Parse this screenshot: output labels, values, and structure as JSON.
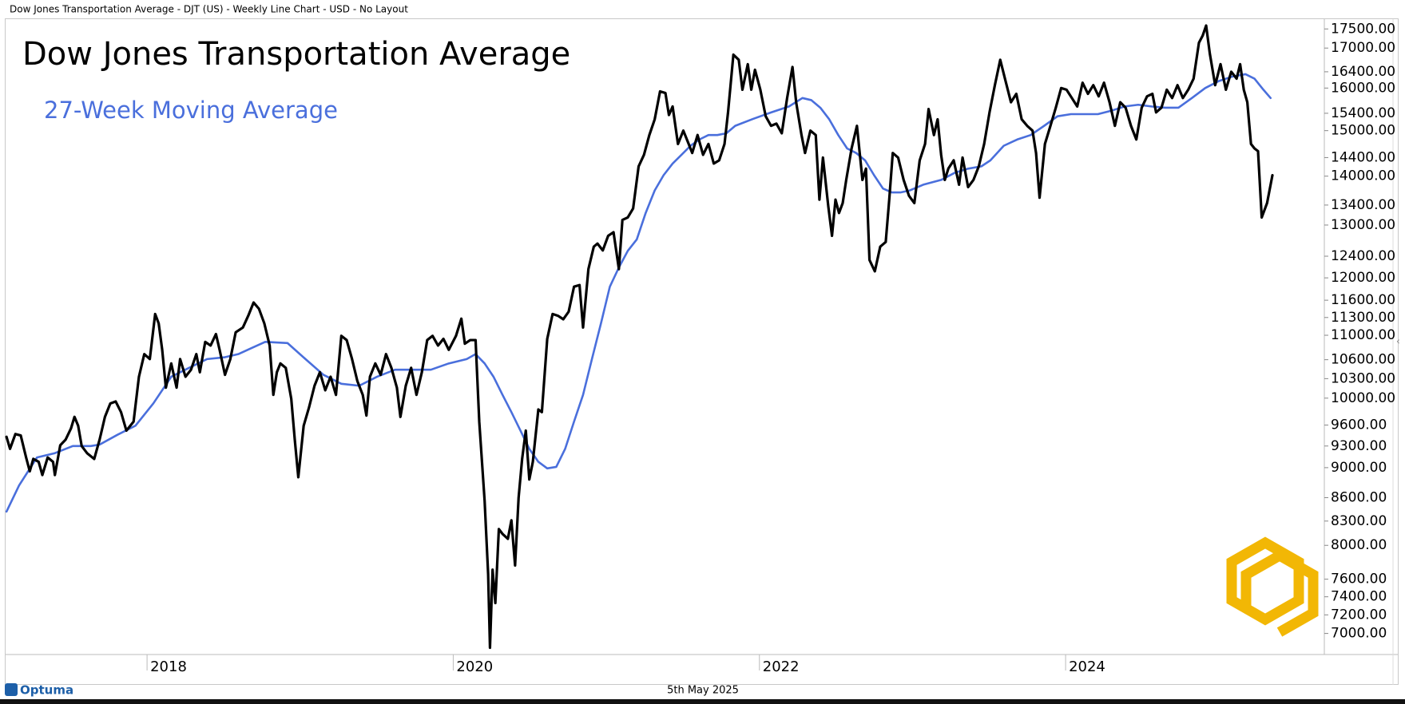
{
  "header": "Dow Jones Transportation Average - DJT (US) - Weekly Line Chart - USD - No Layout",
  "footer": {
    "brand": "Optuma",
    "date": "5th May 2025"
  },
  "chart_data": {
    "type": "line",
    "title": "Dow Jones Transportation Average",
    "log_y": true,
    "y_axis_side": "right",
    "grid": false,
    "xlim": [
      2017.076,
      2025.69
    ],
    "xticks": [
      2018,
      2020,
      2022,
      2024
    ],
    "ylim": [
      6780,
      17740
    ],
    "yticks": [
      {
        "value": 17500,
        "label": "17500.00"
      },
      {
        "value": 17000,
        "label": "17000.00"
      },
      {
        "value": 16400,
        "label": "16400.00"
      },
      {
        "value": 16000,
        "label": "16000.00"
      },
      {
        "value": 15400,
        "label": "15400.00"
      },
      {
        "value": 15000,
        "label": "15000.00"
      },
      {
        "value": 14400,
        "label": "14400.00"
      },
      {
        "value": 14000,
        "label": "14000.00"
      },
      {
        "value": 13400,
        "label": "13400.00"
      },
      {
        "value": 13000,
        "label": "13000.00"
      },
      {
        "value": 12400,
        "label": "12400.00"
      },
      {
        "value": 12000,
        "label": "12000.00"
      },
      {
        "value": 11600,
        "label": "11600.00"
      },
      {
        "value": 11300,
        "label": "11300.00"
      },
      {
        "value": 11000,
        "label": "11000.00"
      },
      {
        "value": 10600,
        "label": "10600.00"
      },
      {
        "value": 10300,
        "label": "10300.00"
      },
      {
        "value": 10000,
        "label": "10000.00"
      },
      {
        "value": 9600,
        "label": "9600.00"
      },
      {
        "value": 9300,
        "label": "9300.00"
      },
      {
        "value": 9000,
        "label": "9000.00"
      },
      {
        "value": 8600,
        "label": "8600.00"
      },
      {
        "value": 8300,
        "label": "8300.00"
      },
      {
        "value": 8000,
        "label": "8000.00"
      },
      {
        "value": 7600,
        "label": "7600.00"
      },
      {
        "value": 7400,
        "label": "7400.00"
      },
      {
        "value": 7200,
        "label": "7200.00"
      },
      {
        "value": 7000,
        "label": "7000.00"
      }
    ],
    "series": [
      {
        "color": "#000000",
        "x": [
          2017.082,
          2017.105,
          2017.14,
          2017.175,
          2017.21,
          2017.234,
          2017.257,
          2017.292,
          2017.316,
          2017.351,
          2017.386,
          2017.398,
          2017.433,
          2017.468,
          2017.503,
          2017.526,
          2017.55,
          2017.573,
          2017.608,
          2017.655,
          2017.69,
          2017.725,
          2017.76,
          2017.795,
          2017.83,
          2017.865,
          2017.912,
          2017.947,
          2017.982,
          2018.018,
          2018.053,
          2018.076,
          2018.099,
          2018.123,
          2018.158,
          2018.193,
          2018.216,
          2018.251,
          2018.287,
          2018.322,
          2018.345,
          2018.38,
          2018.415,
          2018.45,
          2018.474,
          2018.509,
          2018.544,
          2018.579,
          2018.626,
          2018.661,
          2018.696,
          2018.731,
          2018.766,
          2018.801,
          2018.825,
          2018.848,
          2018.871,
          2018.906,
          2018.942,
          2018.965,
          2018.988,
          2019.023,
          2019.058,
          2019.094,
          2019.129,
          2019.164,
          2019.199,
          2019.234,
          2019.269,
          2019.304,
          2019.339,
          2019.374,
          2019.409,
          2019.433,
          2019.456,
          2019.491,
          2019.526,
          2019.561,
          2019.596,
          2019.632,
          2019.655,
          2019.69,
          2019.725,
          2019.76,
          2019.795,
          2019.83,
          2019.865,
          2019.901,
          2019.936,
          2019.971,
          2020.018,
          2020.053,
          2020.076,
          2020.111,
          2020.146,
          2020.17,
          2020.205,
          2020.228,
          2020.24,
          2020.257,
          2020.275,
          2020.298,
          2020.322,
          2020.357,
          2020.38,
          2020.404,
          2020.427,
          2020.45,
          2020.474,
          2020.497,
          2020.52,
          2020.556,
          2020.579,
          2020.614,
          2020.649,
          2020.684,
          2020.719,
          2020.754,
          2020.789,
          2020.825,
          2020.848,
          2020.883,
          2020.918,
          2020.942,
          2020.977,
          2021.012,
          2021.047,
          2021.082,
          2021.105,
          2021.14,
          2021.175,
          2021.211,
          2021.246,
          2021.281,
          2021.316,
          2021.351,
          2021.386,
          2021.409,
          2021.433,
          2021.468,
          2021.503,
          2021.538,
          2021.561,
          2021.596,
          2021.632,
          2021.667,
          2021.702,
          2021.737,
          2021.772,
          2021.795,
          2021.83,
          2021.865,
          2021.889,
          2021.924,
          2021.947,
          2021.971,
          2022.006,
          2022.041,
          2022.076,
          2022.111,
          2022.146,
          2022.181,
          2022.216,
          2022.24,
          2022.275,
          2022.298,
          2022.333,
          2022.368,
          2022.392,
          2022.415,
          2022.45,
          2022.474,
          2022.497,
          2022.52,
          2022.544,
          2022.567,
          2022.602,
          2022.637,
          2022.673,
          2022.696,
          2022.719,
          2022.754,
          2022.789,
          2022.825,
          2022.848,
          2022.871,
          2022.906,
          2022.942,
          2022.977,
          2023.012,
          2023.047,
          2023.082,
          2023.105,
          2023.14,
          2023.164,
          2023.187,
          2023.211,
          2023.234,
          2023.269,
          2023.304,
          2023.327,
          2023.363,
          2023.398,
          2023.433,
          2023.468,
          2023.503,
          2023.538,
          2023.573,
          2023.608,
          2023.643,
          2023.678,
          2023.713,
          2023.749,
          2023.784,
          2023.807,
          2023.83,
          2023.865,
          2023.901,
          2023.936,
          2023.971,
          2024.006,
          2024.041,
          2024.076,
          2024.111,
          2024.146,
          2024.181,
          2024.216,
          2024.251,
          2024.287,
          2024.322,
          2024.357,
          2024.392,
          2024.427,
          2024.462,
          2024.497,
          2024.532,
          2024.567,
          2024.591,
          2024.626,
          2024.661,
          2024.696,
          2024.731,
          2024.766,
          2024.801,
          2024.836,
          2024.871,
          2024.895,
          2024.918,
          2024.942,
          2024.977,
          2025.012,
          2025.047,
          2025.082,
          2025.117,
          2025.14,
          2025.164,
          2025.187,
          2025.211,
          2025.234,
          2025.257,
          2025.281,
          2025.316,
          2025.351
        ],
        "values": [
          9430,
          9260,
          9470,
          9450,
          9140,
          8950,
          9120,
          9080,
          8900,
          9140,
          9080,
          8900,
          9310,
          9390,
          9550,
          9720,
          9590,
          9300,
          9200,
          9120,
          9390,
          9720,
          9920,
          9950,
          9790,
          9520,
          9650,
          10330,
          10690,
          10610,
          11360,
          11200,
          10760,
          10160,
          10540,
          10160,
          10610,
          10330,
          10440,
          10690,
          10400,
          10890,
          10830,
          11020,
          10760,
          10360,
          10610,
          11050,
          11130,
          11330,
          11560,
          11450,
          11200,
          10830,
          10050,
          10400,
          10540,
          10470,
          9990,
          9390,
          8870,
          9590,
          9860,
          10190,
          10400,
          10120,
          10330,
          10050,
          10990,
          10920,
          10610,
          10260,
          10050,
          9740,
          10330,
          10540,
          10360,
          10690,
          10470,
          10160,
          9720,
          10190,
          10470,
          10050,
          10400,
          10920,
          10990,
          10830,
          10940,
          10760,
          10990,
          11280,
          10860,
          10920,
          10920,
          9650,
          8560,
          7660,
          6850,
          7710,
          7330,
          8200,
          8140,
          8080,
          8310,
          7760,
          8600,
          9120,
          9520,
          8840,
          9080,
          9830,
          9790,
          10940,
          11360,
          11330,
          11270,
          11400,
          11840,
          11870,
          11130,
          12160,
          12580,
          12640,
          12510,
          12790,
          12860,
          12160,
          13100,
          13150,
          13330,
          14210,
          14460,
          14900,
          15260,
          15920,
          15880,
          15360,
          15560,
          14700,
          15000,
          14700,
          14500,
          14900,
          14460,
          14700,
          14270,
          14340,
          14700,
          15420,
          16830,
          16700,
          15960,
          16590,
          15960,
          16450,
          15960,
          15330,
          15110,
          15160,
          14940,
          15760,
          16520,
          15660,
          14900,
          14500,
          15000,
          14900,
          13510,
          14400,
          13370,
          12790,
          13510,
          13240,
          13440,
          13920,
          14600,
          15110,
          13920,
          14160,
          12330,
          12120,
          12580,
          12670,
          13510,
          14500,
          14400,
          13920,
          13590,
          13440,
          14340,
          14700,
          15500,
          14900,
          15260,
          14460,
          13920,
          14160,
          14340,
          13820,
          14400,
          13770,
          13920,
          14210,
          14700,
          15420,
          16070,
          16700,
          16170,
          15660,
          15860,
          15260,
          15110,
          15000,
          14500,
          13550,
          14700,
          15110,
          15530,
          16000,
          15960,
          15760,
          15560,
          16130,
          15860,
          16070,
          15800,
          16130,
          15660,
          15110,
          15660,
          15530,
          15110,
          14800,
          15530,
          15800,
          15860,
          15420,
          15530,
          15960,
          15760,
          16070,
          15760,
          15960,
          16230,
          17140,
          17320,
          17590,
          16860,
          16070,
          16590,
          15960,
          16400,
          16230,
          16590,
          15960,
          15660,
          14700,
          14600,
          14540,
          13150,
          13440,
          14020
        ]
      },
      {
        "name": "27-Week Moving Average",
        "color": "#4a6fdc",
        "x": [
          2017.082,
          2017.164,
          2017.281,
          2017.398,
          2017.515,
          2017.632,
          2017.69,
          2017.807,
          2017.924,
          2018.041,
          2018.158,
          2018.275,
          2018.392,
          2018.509,
          2018.596,
          2018.684,
          2018.772,
          2018.918,
          2019.035,
          2019.152,
          2019.269,
          2019.386,
          2019.503,
          2019.62,
          2019.737,
          2019.854,
          2019.971,
          2020.088,
          2020.146,
          2020.205,
          2020.263,
          2020.322,
          2020.38,
          2020.439,
          2020.497,
          2020.556,
          2020.614,
          2020.673,
          2020.731,
          2020.789,
          2020.848,
          2020.906,
          2020.965,
          2021.023,
          2021.082,
          2021.14,
          2021.199,
          2021.257,
          2021.316,
          2021.374,
          2021.433,
          2021.491,
          2021.55,
          2021.608,
          2021.667,
          2021.725,
          2021.784,
          2021.842,
          2021.959,
          2022.076,
          2022.193,
          2022.281,
          2022.339,
          2022.398,
          2022.456,
          2022.515,
          2022.573,
          2022.632,
          2022.69,
          2022.749,
          2022.807,
          2022.865,
          2022.924,
          2022.982,
          2023.07,
          2023.187,
          2023.275,
          2023.363,
          2023.45,
          2023.509,
          2023.596,
          2023.684,
          2023.772,
          2023.86,
          2023.947,
          2024.035,
          2024.123,
          2024.211,
          2024.298,
          2024.386,
          2024.474,
          2024.561,
          2024.649,
          2024.737,
          2024.825,
          2024.912,
          2025.0,
          2025.088,
          2025.175,
          2025.234,
          2025.292,
          2025.339
        ],
        "values": [
          8420,
          8760,
          9140,
          9200,
          9300,
          9300,
          9320,
          9460,
          9590,
          9920,
          10330,
          10470,
          10610,
          10640,
          10690,
          10790,
          10890,
          10870,
          10610,
          10360,
          10220,
          10190,
          10330,
          10440,
          10440,
          10440,
          10540,
          10610,
          10690,
          10540,
          10330,
          10050,
          9790,
          9520,
          9260,
          9080,
          8990,
          9010,
          9260,
          9650,
          10050,
          10610,
          11200,
          11840,
          12190,
          12500,
          12720,
          13240,
          13700,
          14020,
          14270,
          14460,
          14660,
          14800,
          14900,
          14900,
          14940,
          15110,
          15270,
          15420,
          15560,
          15760,
          15710,
          15530,
          15260,
          14900,
          14600,
          14500,
          14340,
          14020,
          13740,
          13660,
          13660,
          13700,
          13820,
          13920,
          14070,
          14160,
          14210,
          14340,
          14660,
          14800,
          14900,
          15110,
          15330,
          15380,
          15380,
          15380,
          15460,
          15560,
          15600,
          15560,
          15530,
          15530,
          15760,
          16000,
          16170,
          16280,
          16340,
          16230,
          15960,
          15760
        ]
      }
    ]
  }
}
